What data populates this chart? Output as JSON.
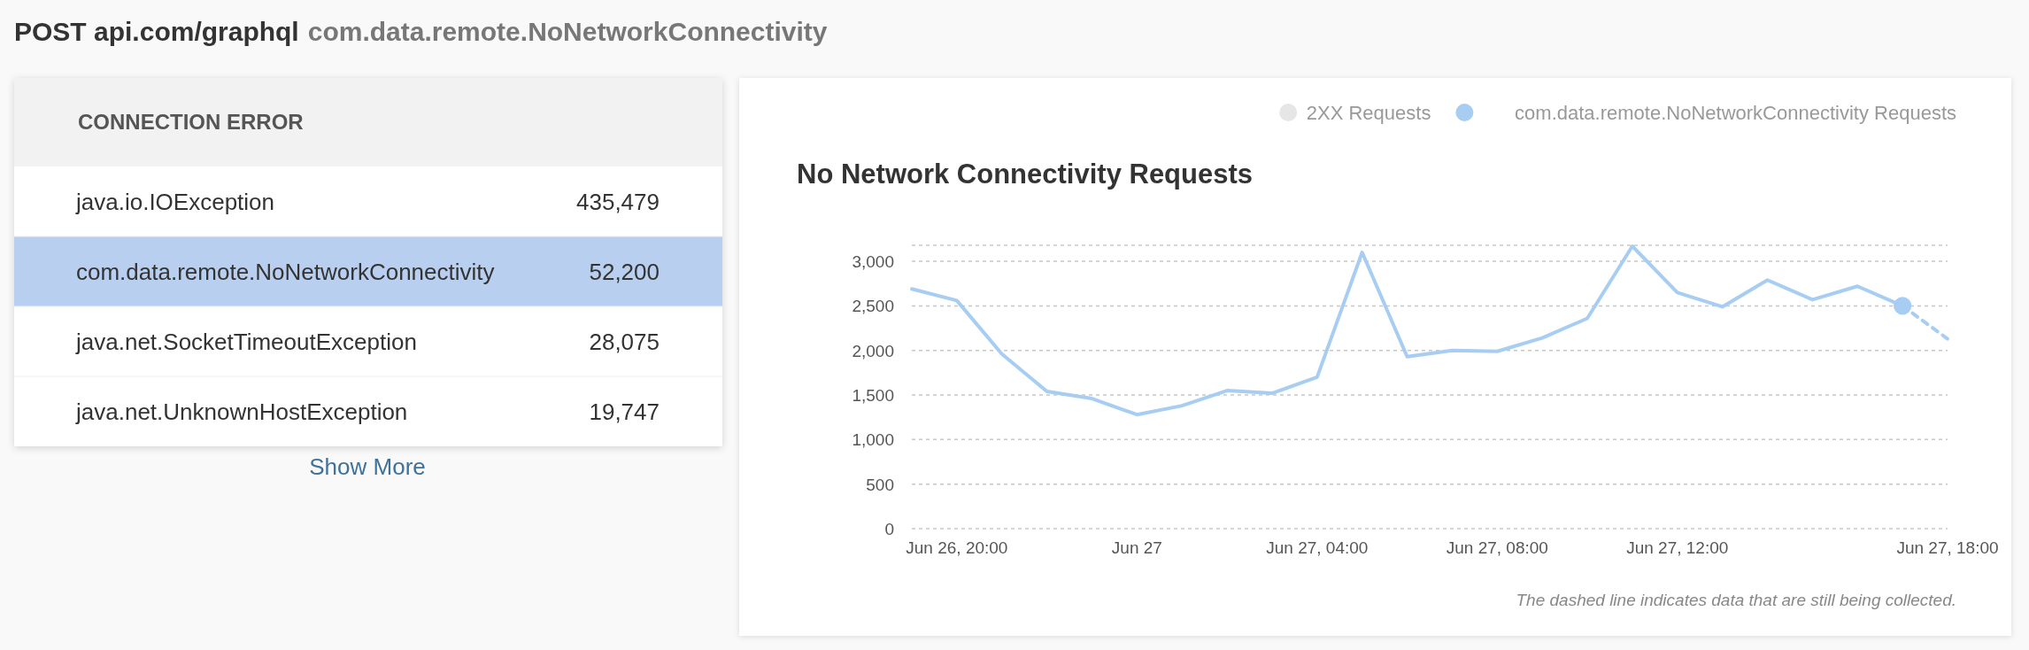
{
  "chart_data": [
    {
      "type": "other",
      "title": "POST api.com/graphql",
      "subtitle": "com.data.remote.NoNetworkConnectivity",
      "annotations": [
        "CONNECTION ERROR",
        "Show More"
      ],
      "categories": [
        "java.io.IOException",
        "com.data.remote.NoNetworkConnectivity",
        "java.net.SocketTimeoutException",
        "java.net.UnknownHostException"
      ],
      "value_labels": [
        "435,479",
        "52,200",
        "28,075",
        "19,747"
      ],
      "colors": [
        "#ffffff",
        "#b9cff0",
        "#ffffff",
        "#ffffff"
      ]
    },
    {
      "type": "line",
      "title": "No Network Connectivity Requests",
      "annotations": [
        "The dashed line indicates data that are still being collected."
      ],
      "categories": [
        null,
        "Jun 26, 20:00",
        null,
        null,
        null,
        "Jun 27",
        null,
        null,
        null,
        "Jun 27, 04:00",
        null,
        null,
        null,
        "Jun 27, 08:00",
        null,
        null,
        null,
        "Jun 27, 12:00",
        null,
        null,
        null,
        null,
        null,
        "Jun 27, 18:00"
      ],
      "ylim": [
        0,
        3180
      ],
      "yticks": [
        {
          "value": 0,
          "label": "0"
        },
        {
          "value": 500,
          "label": "500"
        },
        {
          "value": 1000,
          "label": "1,000"
        },
        {
          "value": 1500,
          "label": "1,500"
        },
        {
          "value": 2000,
          "label": "2,000"
        },
        {
          "value": 2500,
          "label": "2,500"
        },
        {
          "value": 3000,
          "label": "3,000"
        },
        {
          "value": 3180,
          "label": null
        }
      ],
      "grid": "y",
      "legend": "top right",
      "series": [
        {
          "name": "2XX Requests",
          "color": "#e6e6e6",
          "values": [
            null,
            null,
            null,
            null,
            null,
            null,
            null,
            null,
            null,
            null,
            null,
            null,
            null,
            null,
            null,
            null,
            null,
            null,
            null,
            null,
            null,
            null,
            null,
            null
          ]
        },
        {
          "name": "com.data.remote.NoNetworkConnectivity Requests",
          "color": "#a8cdf2",
          "values": [
            2690,
            2560,
            1960,
            1540,
            1460,
            1280,
            1380,
            1550,
            1520,
            1700,
            3100,
            1930,
            2000,
            1990,
            2140,
            2360,
            3170,
            2650,
            2490,
            2790,
            2570,
            2720,
            2500,
            null
          ]
        },
        {
          "color": "#a8cdf2",
          "line_style": "dashed",
          "values": [
            null,
            null,
            null,
            null,
            null,
            null,
            null,
            null,
            null,
            null,
            null,
            null,
            null,
            null,
            null,
            null,
            null,
            null,
            null,
            null,
            null,
            null,
            2500,
            2130
          ]
        },
        {
          "type": "scatter",
          "color": "#a8cdf2",
          "marker": "circle",
          "values": [
            null,
            null,
            null,
            null,
            null,
            null,
            null,
            null,
            null,
            null,
            null,
            null,
            null,
            null,
            null,
            null,
            null,
            null,
            null,
            null,
            null,
            null,
            2500,
            null
          ]
        }
      ]
    }
  ]
}
